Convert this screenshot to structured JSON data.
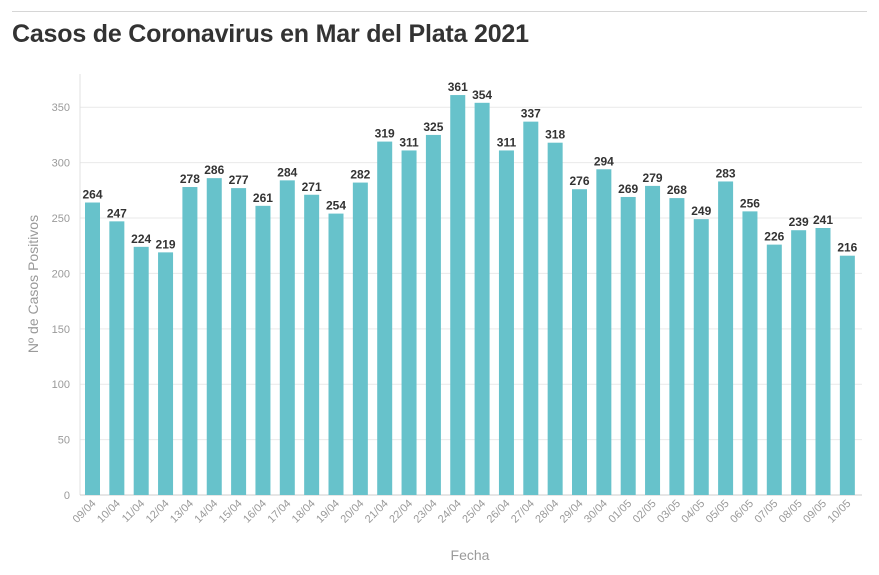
{
  "chart_data": {
    "type": "bar",
    "title": "Casos de Coronavirus en Mar del Plata 2021",
    "xlabel": "Fecha",
    "ylabel": "Nº de Casos Positivos",
    "ylim": [
      0,
      380
    ],
    "yticks": [
      0,
      50,
      100,
      150,
      200,
      250,
      300,
      350
    ],
    "grid": true,
    "categories": [
      "09/04",
      "10/04",
      "11/04",
      "12/04",
      "13/04",
      "14/04",
      "15/04",
      "16/04",
      "17/04",
      "18/04",
      "19/04",
      "20/04",
      "21/04",
      "22/04",
      "23/04",
      "24/04",
      "25/04",
      "26/04",
      "27/04",
      "28/04",
      "29/04",
      "30/04",
      "01/05",
      "02/05",
      "03/05",
      "04/05",
      "05/05",
      "06/05",
      "07/05",
      "08/05",
      "09/05",
      "10/05"
    ],
    "values": [
      264,
      247,
      224,
      219,
      278,
      286,
      277,
      261,
      284,
      271,
      254,
      282,
      319,
      311,
      325,
      361,
      354,
      311,
      337,
      318,
      276,
      294,
      269,
      279,
      268,
      249,
      283,
      256,
      226,
      239,
      241,
      216
    ],
    "bar_color": "#67c2cb"
  }
}
